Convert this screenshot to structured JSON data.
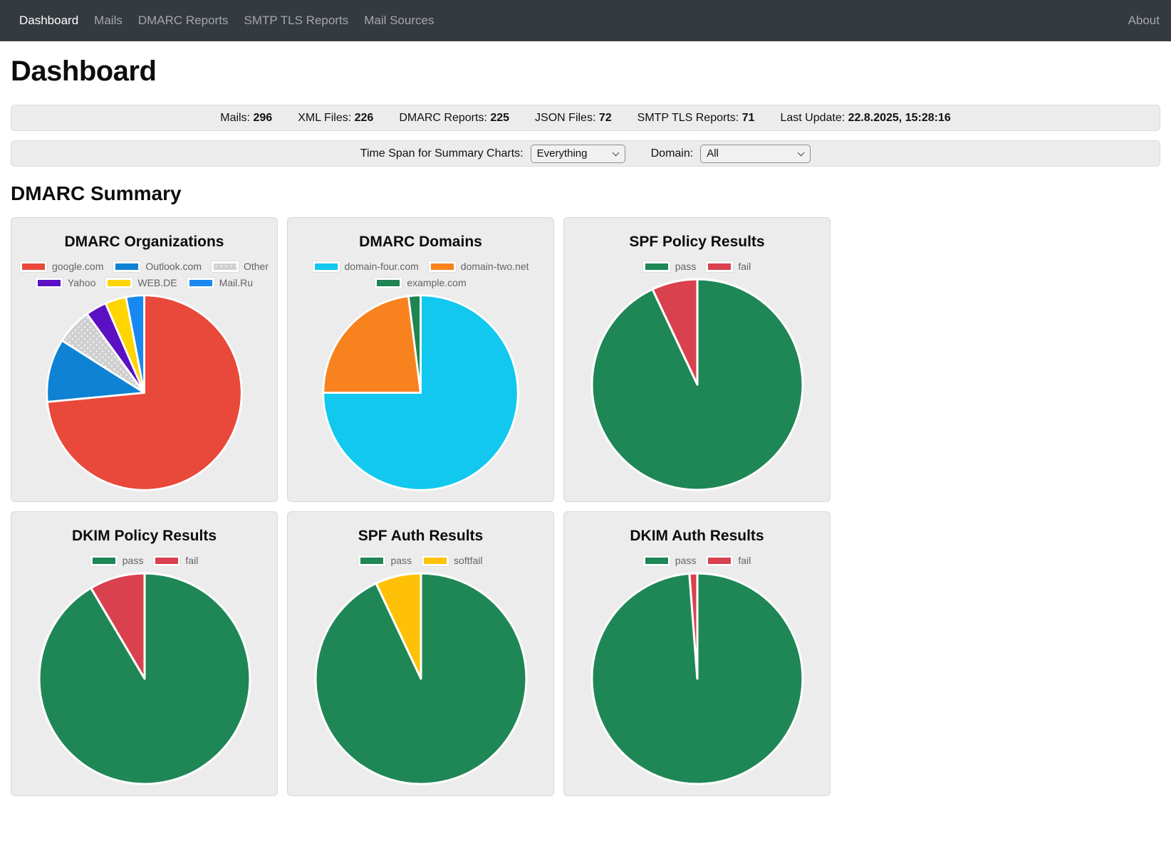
{
  "navbar": {
    "items": [
      {
        "label": "Dashboard",
        "active": true
      },
      {
        "label": "Mails",
        "active": false
      },
      {
        "label": "DMARC Reports",
        "active": false
      },
      {
        "label": "SMTP TLS Reports",
        "active": false
      },
      {
        "label": "Mail Sources",
        "active": false
      }
    ],
    "right_label": "About"
  },
  "page": {
    "title": "Dashboard",
    "section_title": "DMARC Summary"
  },
  "stats": [
    {
      "label": "Mails:",
      "value": "296"
    },
    {
      "label": "XML Files:",
      "value": "226"
    },
    {
      "label": "DMARC Reports:",
      "value": "225"
    },
    {
      "label": "JSON Files:",
      "value": "72"
    },
    {
      "label": "SMTP TLS Reports:",
      "value": "71"
    },
    {
      "label": "Last Update:",
      "value": "22.8.2025, 15:28:16"
    }
  ],
  "controls": {
    "time_span_label": "Time Span for Summary Charts:",
    "time_span_value": "Everything",
    "domain_label": "Domain:",
    "domain_value": "All"
  },
  "colors": {
    "navbar_bg": "#343a40",
    "panel_bg": "#ececec",
    "pass_green": "#1f8756",
    "fail_red": "#d9414f",
    "softfail_amber": "#ffc107",
    "slice_stroke": "#ffffff"
  },
  "chart_data": [
    {
      "type": "pie",
      "title": "DMARC Organizations",
      "legend_position": "top",
      "start_angle_deg": 0,
      "direction": "clockwise",
      "units": "percent",
      "series": [
        {
          "name": "google.com",
          "value": 73.5,
          "color": "#e8493a"
        },
        {
          "name": "Outlook.com",
          "value": 10.5,
          "color": "#0f82d4"
        },
        {
          "name": "Other",
          "value": 6.0,
          "color": "#cfcfcf",
          "pattern": "dots"
        },
        {
          "name": "Yahoo",
          "value": 3.5,
          "color": "#5b10c3"
        },
        {
          "name": "WEB.DE",
          "value": 3.5,
          "color": "#ffd500"
        },
        {
          "name": "Mail.Ru",
          "value": 3.0,
          "color": "#1789f0"
        }
      ]
    },
    {
      "type": "pie",
      "title": "DMARC Domains",
      "legend_position": "top",
      "start_angle_deg": 0,
      "direction": "clockwise",
      "units": "percent",
      "series": [
        {
          "name": "domain-four.com",
          "value": 75.0,
          "color": "#12c8ee"
        },
        {
          "name": "domain-two.net",
          "value": 23.0,
          "color": "#f8821e"
        },
        {
          "name": "example.com",
          "value": 2.0,
          "color": "#1e8454"
        }
      ]
    },
    {
      "type": "pie",
      "title": "SPF Policy Results",
      "legend_position": "top",
      "start_angle_deg": 0,
      "direction": "clockwise",
      "units": "percent",
      "series": [
        {
          "name": "pass",
          "value": 93.0,
          "color": "#1f8756"
        },
        {
          "name": "fail",
          "value": 7.0,
          "color": "#d9414f"
        }
      ]
    },
    {
      "type": "pie",
      "title": "DKIM Policy Results",
      "legend_position": "top",
      "start_angle_deg": 0,
      "direction": "clockwise",
      "units": "percent",
      "series": [
        {
          "name": "pass",
          "value": 91.5,
          "color": "#1f8756"
        },
        {
          "name": "fail",
          "value": 8.5,
          "color": "#d9414f"
        }
      ]
    },
    {
      "type": "pie",
      "title": "SPF Auth Results",
      "legend_position": "top",
      "start_angle_deg": 0,
      "direction": "clockwise",
      "units": "percent",
      "series": [
        {
          "name": "pass",
          "value": 93.0,
          "color": "#1f8756"
        },
        {
          "name": "softfail",
          "value": 7.0,
          "color": "#ffc107"
        }
      ]
    },
    {
      "type": "pie",
      "title": "DKIM Auth Results",
      "legend_position": "top",
      "start_angle_deg": 0,
      "direction": "clockwise",
      "units": "percent",
      "series": [
        {
          "name": "pass",
          "value": 98.8,
          "color": "#1f8756"
        },
        {
          "name": "fail",
          "value": 1.2,
          "color": "#d9414f"
        }
      ]
    }
  ]
}
